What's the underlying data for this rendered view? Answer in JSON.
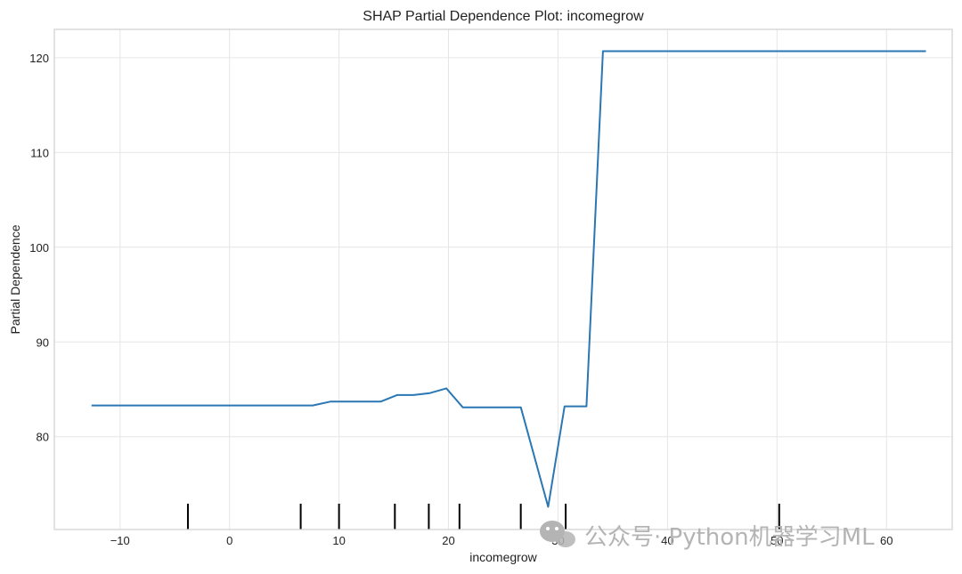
{
  "chart_data": {
    "type": "line",
    "title": "SHAP Partial Dependence Plot: incomegrow",
    "xlabel": "incomegrow",
    "ylabel": "Partial Dependence",
    "xlim": [
      -16,
      66
    ],
    "ylim": [
      70.2,
      123
    ],
    "grid": true,
    "legend": "none",
    "xticks": [
      -10,
      0,
      10,
      20,
      30,
      40,
      50,
      60
    ],
    "xtick_labels": [
      "−10",
      "0",
      "10",
      "20",
      "30",
      "40",
      "50",
      "60"
    ],
    "yticks": [
      80,
      90,
      100,
      110,
      120
    ],
    "ytick_labels": [
      "80",
      "90",
      "100",
      "110",
      "120"
    ],
    "line_color": "#2a77b4",
    "series": [
      {
        "x": [
          -12.6,
          7.6,
          9.2,
          13.8,
          15.3,
          16.8,
          18.3,
          19.8,
          21.3,
          26.6,
          29.1,
          30.6,
          32.6,
          34.1,
          63.6
        ],
        "y": [
          83.3,
          83.3,
          83.7,
          83.7,
          84.4,
          84.4,
          84.6,
          85.1,
          83.1,
          83.1,
          72.6,
          83.2,
          83.2,
          120.7,
          120.7
        ]
      }
    ],
    "rug": [
      -3.8,
      6.5,
      10.0,
      15.1,
      18.2,
      21.0,
      26.6,
      30.7,
      50.2
    ]
  },
  "watermark": {
    "text": "公众号· Python机器学习ML",
    "icon": "wechat-icon"
  }
}
